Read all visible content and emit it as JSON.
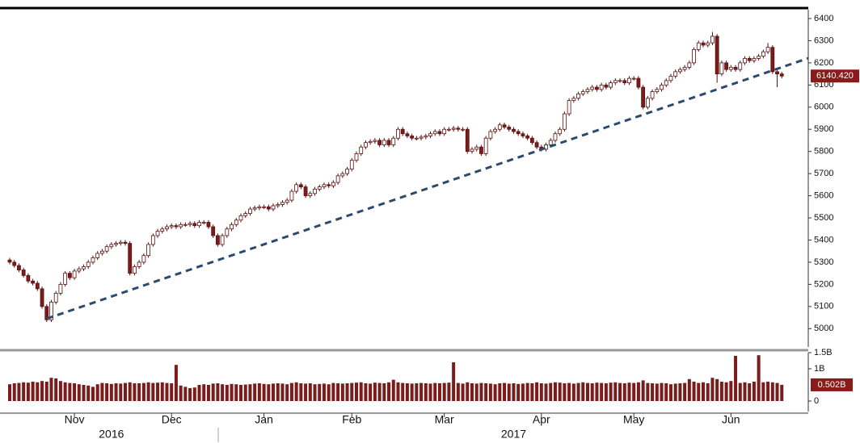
{
  "chart_data": {
    "type": "candlestick",
    "categories": [
      null,
      null,
      null,
      null,
      null,
      null,
      null,
      null,
      null,
      null,
      null,
      null,
      null,
      null,
      "Nov",
      null,
      null,
      null,
      null,
      null,
      null,
      null,
      null,
      null,
      null,
      null,
      null,
      null,
      null,
      null,
      null,
      null,
      null,
      null,
      null,
      "Dec",
      null,
      null,
      null,
      null,
      null,
      null,
      null,
      null,
      null,
      null,
      null,
      null,
      null,
      null,
      null,
      null,
      null,
      null,
      null,
      "Jan",
      null,
      null,
      null,
      null,
      null,
      null,
      null,
      null,
      null,
      null,
      null,
      null,
      null,
      null,
      null,
      null,
      null,
      null,
      "Feb",
      null,
      null,
      null,
      null,
      null,
      null,
      null,
      null,
      null,
      null,
      null,
      null,
      null,
      null,
      null,
      null,
      null,
      null,
      null,
      "Mar",
      null,
      null,
      null,
      null,
      null,
      null,
      null,
      null,
      null,
      null,
      null,
      null,
      null,
      null,
      null,
      null,
      null,
      null,
      null,
      null,
      "Apr",
      null,
      null,
      null,
      null,
      null,
      null,
      null,
      null,
      null,
      null,
      null,
      null,
      null,
      null,
      null,
      null,
      null,
      null,
      null,
      "May",
      null,
      null,
      null,
      null,
      null,
      null,
      null,
      null,
      null,
      null,
      null,
      null,
      null,
      null,
      null,
      null,
      null,
      null,
      null,
      null,
      "Jun",
      null,
      null,
      null,
      null,
      null,
      null,
      null,
      null,
      null,
      null,
      null
    ],
    "years": [
      null,
      null,
      null,
      null,
      null,
      null,
      null,
      null,
      null,
      null,
      null,
      null,
      null,
      null,
      null,
      null,
      null,
      null,
      null,
      null,
      null,
      null,
      "2016",
      null,
      null,
      null,
      null,
      null,
      null,
      null,
      null,
      null,
      null,
      null,
      null,
      null,
      null,
      null,
      null,
      null,
      null,
      null,
      null,
      null,
      null,
      null,
      null,
      null,
      null,
      null,
      null,
      null,
      null,
      null,
      null,
      null,
      null,
      null,
      null,
      null,
      null,
      null,
      null,
      null,
      null,
      null,
      null,
      null,
      null,
      null,
      null,
      null,
      null,
      null,
      null,
      null,
      null,
      null,
      null,
      null,
      null,
      null,
      null,
      null,
      null,
      null,
      null,
      null,
      null,
      null,
      null,
      null,
      null,
      null,
      null,
      null,
      null,
      null,
      null,
      null,
      null,
      null,
      null,
      null,
      null,
      null,
      null,
      null,
      null,
      "2017",
      null,
      null,
      null,
      null,
      null,
      null,
      null,
      null,
      null,
      null,
      null,
      null,
      null,
      null,
      null,
      null,
      null,
      null,
      null,
      null,
      null,
      null,
      null,
      null,
      null,
      null,
      null,
      null,
      null,
      null,
      null,
      null,
      null,
      null,
      null,
      null,
      null,
      null,
      null,
      null,
      null,
      null,
      null,
      null,
      null,
      null,
      null,
      null,
      null,
      null,
      null,
      null,
      null,
      null,
      null,
      null,
      null,
      null
    ],
    "open": [
      5310,
      5300,
      5285,
      5265,
      5240,
      5215,
      5205,
      5180,
      5100,
      5040,
      5120,
      5160,
      5200,
      5250,
      5230,
      5260,
      5270,
      5280,
      5300,
      5320,
      5340,
      5350,
      5370,
      5380,
      5385,
      5390,
      5385,
      5250,
      5280,
      5300,
      5330,
      5380,
      5420,
      5440,
      5450,
      5460,
      5465,
      5460,
      5470,
      5470,
      5475,
      5465,
      5480,
      5480,
      5460,
      5420,
      5380,
      5420,
      5450,
      5470,
      5490,
      5510,
      5520,
      5540,
      5545,
      5550,
      5550,
      5540,
      5555,
      5560,
      5570,
      5580,
      5620,
      5650,
      5640,
      5600,
      5610,
      5630,
      5640,
      5650,
      5645,
      5660,
      5690,
      5700,
      5720,
      5760,
      5790,
      5820,
      5840,
      5845,
      5850,
      5830,
      5850,
      5830,
      5860,
      5900,
      5880,
      5870,
      5860,
      5860,
      5865,
      5870,
      5880,
      5890,
      5880,
      5900,
      5900,
      5905,
      5900,
      5900,
      5800,
      5810,
      5820,
      5790,
      5860,
      5890,
      5900,
      5920,
      5910,
      5900,
      5890,
      5880,
      5870,
      5860,
      5840,
      5820,
      5810,
      5830,
      5850,
      5880,
      5900,
      5970,
      6030,
      6040,
      6060,
      6070,
      6080,
      6090,
      6080,
      6100,
      6090,
      6110,
      6120,
      6120,
      6110,
      6130,
      6130,
      6090,
      6000,
      6040,
      6070,
      6080,
      6100,
      6120,
      6140,
      6160,
      6170,
      6180,
      6200,
      6260,
      6290,
      6280,
      6290,
      6320,
      6150,
      6200,
      6170,
      6180,
      6170,
      6200,
      6220,
      6210,
      6220,
      6230,
      6250,
      6270,
      6160,
      6150
    ],
    "high": [
      5320,
      5310,
      5295,
      5275,
      5250,
      5225,
      5215,
      5190,
      5110,
      5130,
      5170,
      5210,
      5260,
      5260,
      5270,
      5280,
      5290,
      5310,
      5330,
      5350,
      5360,
      5380,
      5390,
      5395,
      5400,
      5400,
      5395,
      5290,
      5310,
      5340,
      5390,
      5430,
      5450,
      5460,
      5470,
      5475,
      5475,
      5480,
      5480,
      5485,
      5485,
      5490,
      5490,
      5490,
      5470,
      5430,
      5430,
      5460,
      5480,
      5500,
      5520,
      5530,
      5550,
      5555,
      5560,
      5560,
      5560,
      5565,
      5570,
      5580,
      5590,
      5630,
      5660,
      5660,
      5650,
      5620,
      5640,
      5650,
      5660,
      5660,
      5670,
      5700,
      5710,
      5730,
      5770,
      5800,
      5830,
      5850,
      5855,
      5860,
      5860,
      5860,
      5860,
      5870,
      5910,
      5910,
      5890,
      5880,
      5870,
      5875,
      5880,
      5890,
      5900,
      5900,
      5910,
      5910,
      5915,
      5915,
      5910,
      5910,
      5820,
      5830,
      5830,
      5870,
      5900,
      5910,
      5930,
      5930,
      5920,
      5910,
      5900,
      5890,
      5880,
      5870,
      5850,
      5830,
      5840,
      5860,
      5890,
      5910,
      5980,
      6040,
      6050,
      6070,
      6080,
      6090,
      6100,
      6100,
      6110,
      6110,
      6120,
      6130,
      6130,
      6130,
      6140,
      6140,
      6140,
      6100,
      6050,
      6080,
      6090,
      6110,
      6130,
      6150,
      6170,
      6180,
      6190,
      6210,
      6270,
      6300,
      6300,
      6300,
      6340,
      6330,
      6210,
      6210,
      6190,
      6190,
      6210,
      6230,
      6230,
      6230,
      6240,
      6260,
      6290,
      6280,
      6170,
      6160
    ],
    "low": [
      5290,
      5275,
      5255,
      5230,
      5205,
      5195,
      5170,
      5090,
      5030,
      5030,
      5110,
      5150,
      5190,
      5220,
      5220,
      5250,
      5260,
      5270,
      5290,
      5310,
      5330,
      5340,
      5360,
      5370,
      5375,
      5375,
      5240,
      5240,
      5270,
      5290,
      5320,
      5370,
      5410,
      5430,
      5440,
      5450,
      5450,
      5450,
      5460,
      5460,
      5455,
      5455,
      5470,
      5450,
      5410,
      5370,
      5370,
      5410,
      5440,
      5460,
      5480,
      5500,
      5510,
      5530,
      5535,
      5540,
      5530,
      5530,
      5545,
      5550,
      5560,
      5570,
      5610,
      5630,
      5590,
      5590,
      5600,
      5620,
      5630,
      5635,
      5635,
      5650,
      5680,
      5690,
      5710,
      5750,
      5780,
      5810,
      5830,
      5835,
      5820,
      5820,
      5820,
      5820,
      5850,
      5870,
      5860,
      5850,
      5850,
      5850,
      5855,
      5860,
      5870,
      5870,
      5870,
      5890,
      5890,
      5890,
      5890,
      5790,
      5790,
      5800,
      5780,
      5780,
      5850,
      5880,
      5890,
      5900,
      5890,
      5880,
      5870,
      5860,
      5850,
      5830,
      5810,
      5800,
      5800,
      5820,
      5840,
      5870,
      5890,
      5960,
      6020,
      6030,
      6050,
      6060,
      6070,
      6070,
      6070,
      6080,
      6080,
      6100,
      6110,
      6100,
      6100,
      6120,
      6080,
      5990,
      5990,
      6030,
      6060,
      6070,
      6090,
      6110,
      6130,
      6150,
      6160,
      6170,
      6190,
      6250,
      6270,
      6270,
      6280,
      6110,
      6140,
      6160,
      6160,
      6160,
      6160,
      6190,
      6200,
      6200,
      6210,
      6220,
      6240,
      6150,
      6090,
      6130
    ],
    "close": [
      5300,
      5285,
      5265,
      5240,
      5215,
      5205,
      5180,
      5100,
      5040,
      5120,
      5160,
      5200,
      5250,
      5230,
      5260,
      5270,
      5280,
      5300,
      5320,
      5340,
      5350,
      5370,
      5380,
      5385,
      5390,
      5385,
      5250,
      5280,
      5300,
      5330,
      5380,
      5420,
      5440,
      5450,
      5460,
      5465,
      5460,
      5470,
      5470,
      5475,
      5465,
      5480,
      5480,
      5460,
      5420,
      5380,
      5420,
      5450,
      5470,
      5490,
      5510,
      5520,
      5540,
      5545,
      5550,
      5550,
      5540,
      5555,
      5560,
      5570,
      5580,
      5620,
      5650,
      5640,
      5600,
      5610,
      5630,
      5640,
      5650,
      5645,
      5660,
      5690,
      5700,
      5720,
      5760,
      5790,
      5820,
      5840,
      5845,
      5850,
      5830,
      5850,
      5830,
      5860,
      5900,
      5880,
      5870,
      5860,
      5860,
      5865,
      5870,
      5880,
      5890,
      5880,
      5900,
      5900,
      5905,
      5900,
      5900,
      5800,
      5810,
      5820,
      5790,
      5860,
      5890,
      5900,
      5920,
      5910,
      5900,
      5890,
      5880,
      5870,
      5860,
      5840,
      5820,
      5810,
      5830,
      5850,
      5880,
      5900,
      5970,
      6030,
      6040,
      6060,
      6070,
      6080,
      6090,
      6080,
      6100,
      6090,
      6110,
      6120,
      6120,
      6110,
      6130,
      6130,
      6090,
      6000,
      6040,
      6070,
      6080,
      6100,
      6120,
      6140,
      6160,
      6170,
      6180,
      6200,
      6260,
      6290,
      6280,
      6290,
      6320,
      6150,
      6200,
      6170,
      6180,
      6170,
      6200,
      6220,
      6210,
      6220,
      6230,
      6250,
      6270,
      6160,
      6150,
      6140.42
    ],
    "last_label": "6140.420",
    "up_color": "#ffffff",
    "down_color": "#7b1c1c",
    "edge_color": "#5a1010",
    "ylim": [
      4910,
      6440
    ],
    "yticks": [
      5000,
      5100,
      5200,
      5300,
      5400,
      5500,
      5600,
      5700,
      5800,
      5900,
      6000,
      6100,
      6200,
      6300,
      6400
    ],
    "trendline": {
      "values": [
        5045,
        6221
      ],
      "color": "#2b4a6f"
    },
    "volume": {
      "axis": "y2",
      "color": "#7b1c1c",
      "last_label": "0.502B",
      "values": [
        0.52,
        0.55,
        0.56,
        0.58,
        0.57,
        0.6,
        0.58,
        0.62,
        0.6,
        0.72,
        0.7,
        0.62,
        0.58,
        0.56,
        0.55,
        0.52,
        0.5,
        0.48,
        0.44,
        0.52,
        0.56,
        0.55,
        0.53,
        0.55,
        0.54,
        0.56,
        0.58,
        0.55,
        0.55,
        0.56,
        0.58,
        0.56,
        0.57,
        0.58,
        0.56,
        0.55,
        1.12,
        0.48,
        0.44,
        0.4,
        0.42,
        0.5,
        0.52,
        0.5,
        0.54,
        0.55,
        0.52,
        0.5,
        0.53,
        0.52,
        0.5,
        0.51,
        0.52,
        0.54,
        0.55,
        0.53,
        0.52,
        0.54,
        0.55,
        0.54,
        0.52,
        0.56,
        0.58,
        0.55,
        0.54,
        0.55,
        0.52,
        0.53,
        0.54,
        0.52,
        0.56,
        0.55,
        0.54,
        0.55,
        0.56,
        0.57,
        0.58,
        0.55,
        0.54,
        0.57,
        0.56,
        0.55,
        0.58,
        0.66,
        0.58,
        0.56,
        0.55,
        0.54,
        0.55,
        0.56,
        0.55,
        0.54,
        0.56,
        0.55,
        0.56,
        0.57,
        1.2,
        0.56,
        0.54,
        0.58,
        0.55,
        0.54,
        0.56,
        0.55,
        0.54,
        0.52,
        0.55,
        0.56,
        0.54,
        0.55,
        0.53,
        0.54,
        0.56,
        0.55,
        0.58,
        0.55,
        0.54,
        0.56,
        0.58,
        0.57,
        0.55,
        0.56,
        0.54,
        0.56,
        0.58,
        0.56,
        0.55,
        0.57,
        0.56,
        0.55,
        0.57,
        0.58,
        0.56,
        0.55,
        0.57,
        0.56,
        0.58,
        0.64,
        0.56,
        0.55,
        0.54,
        0.56,
        0.55,
        0.52,
        0.54,
        0.55,
        0.56,
        0.68,
        0.6,
        0.56,
        0.58,
        0.55,
        0.72,
        0.68,
        0.6,
        0.58,
        0.62,
        1.4,
        0.56,
        0.58,
        0.55,
        0.6,
        1.42,
        0.58,
        0.6,
        0.58,
        0.56,
        0.502
      ]
    },
    "y2lim": [
      -0.3,
      1.5
    ],
    "y2ticks": [
      0,
      {
        "value": 1,
        "label": "1B"
      },
      {
        "value": 1.5,
        "label": "1.5B"
      }
    ]
  }
}
